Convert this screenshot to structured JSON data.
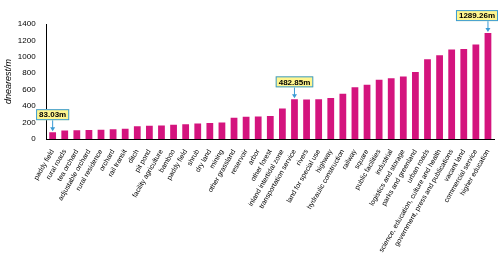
{
  "chart_data": {
    "type": "bar",
    "y_label": "dnearest/m",
    "categories": [
      "paddy field",
      "rural roads",
      "tea orchard",
      "adjustable orchard",
      "rural residence",
      "orchard",
      "rail transit",
      "ditch",
      "pit pond",
      "facility agriculture",
      "bamboo",
      "paddy field",
      "shrub",
      "dry land",
      "mining",
      "other grassland",
      "reservoir",
      "arbor",
      "other forest",
      "inland intertidal zone",
      "transportation service",
      "rivers",
      "land for special use",
      "highway",
      "hydraulic construction",
      "railway",
      "square",
      "public facilities",
      "industrial",
      "logistics and storage",
      "parks and greenland",
      "urban roads",
      "science, education, culture and health",
      "government, press and publications",
      "vacant land",
      "commercial service",
      "higher education"
    ],
    "values": [
      83.03,
      105,
      108,
      110,
      112,
      118,
      125,
      155,
      160,
      165,
      175,
      180,
      190,
      195,
      200,
      260,
      270,
      275,
      280,
      370,
      482.85,
      480,
      485,
      500,
      550,
      630,
      660,
      720,
      740,
      760,
      815,
      970,
      1020,
      1090,
      1095,
      1150,
      1289.26
    ],
    "value_labels": [
      "83.03m",
      null,
      null,
      null,
      null,
      null,
      null,
      null,
      null,
      null,
      null,
      null,
      null,
      null,
      null,
      null,
      null,
      null,
      null,
      null,
      "482.85m",
      null,
      null,
      null,
      null,
      null,
      null,
      null,
      null,
      null,
      null,
      null,
      null,
      null,
      null,
      null,
      "1289.26m"
    ],
    "color": "#d4147e",
    "ylim": [
      0,
      1400
    ],
    "yticks": [
      0,
      200,
      400,
      600,
      800,
      1000,
      1200,
      1400
    ],
    "grid": false
  }
}
